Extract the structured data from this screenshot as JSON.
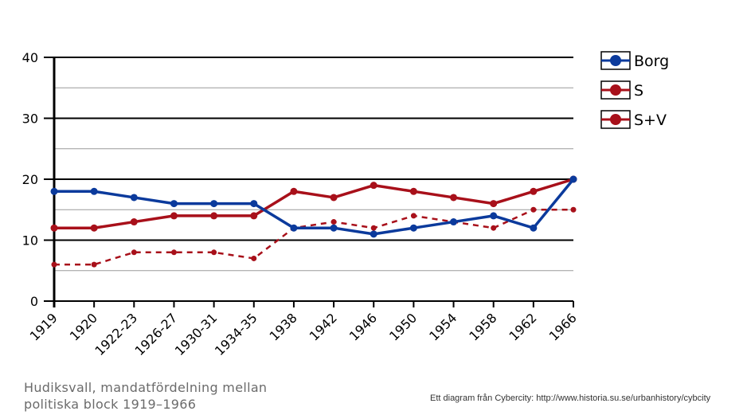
{
  "chart_data": {
    "type": "line",
    "categories": [
      "1919",
      "1920",
      "1922-23",
      "1926-27",
      "1930-31",
      "1934-35",
      "1938",
      "1942",
      "1946",
      "1950",
      "1954",
      "1958",
      "1962",
      "1966"
    ],
    "ylim": [
      0,
      40
    ],
    "yticks": [
      "0",
      "10",
      "20",
      "30",
      "40"
    ],
    "ytick_values": [
      0,
      10,
      20,
      30,
      40
    ],
    "minor_grid_values": [
      5,
      15,
      25,
      35
    ],
    "series": [
      {
        "name": "Borg",
        "color": "#0b3a9c",
        "style": "solid",
        "values": [
          18,
          18,
          17,
          16,
          16,
          16,
          12,
          12,
          11,
          12,
          13,
          14,
          12,
          20
        ]
      },
      {
        "name": "S",
        "color": "#a8101a",
        "style": "dashed",
        "values": [
          6,
          6,
          8,
          8,
          8,
          7,
          12,
          13,
          12,
          14,
          13,
          12,
          15,
          15
        ]
      },
      {
        "name": "S+V",
        "color": "#a8101a",
        "style": "solid",
        "values": [
          12,
          12,
          13,
          14,
          14,
          14,
          18,
          17,
          19,
          18,
          17,
          16,
          18,
          20
        ]
      }
    ],
    "legend_position": "top-right",
    "grid": true
  },
  "caption": {
    "line1": "Hudiksvall, mandatfördelning  mellan",
    "line2": "politiska block 1919–1966"
  },
  "credit": "Ett diagram från Cybercity: http://www.historia.su.se/urbanhistory/cybcity"
}
